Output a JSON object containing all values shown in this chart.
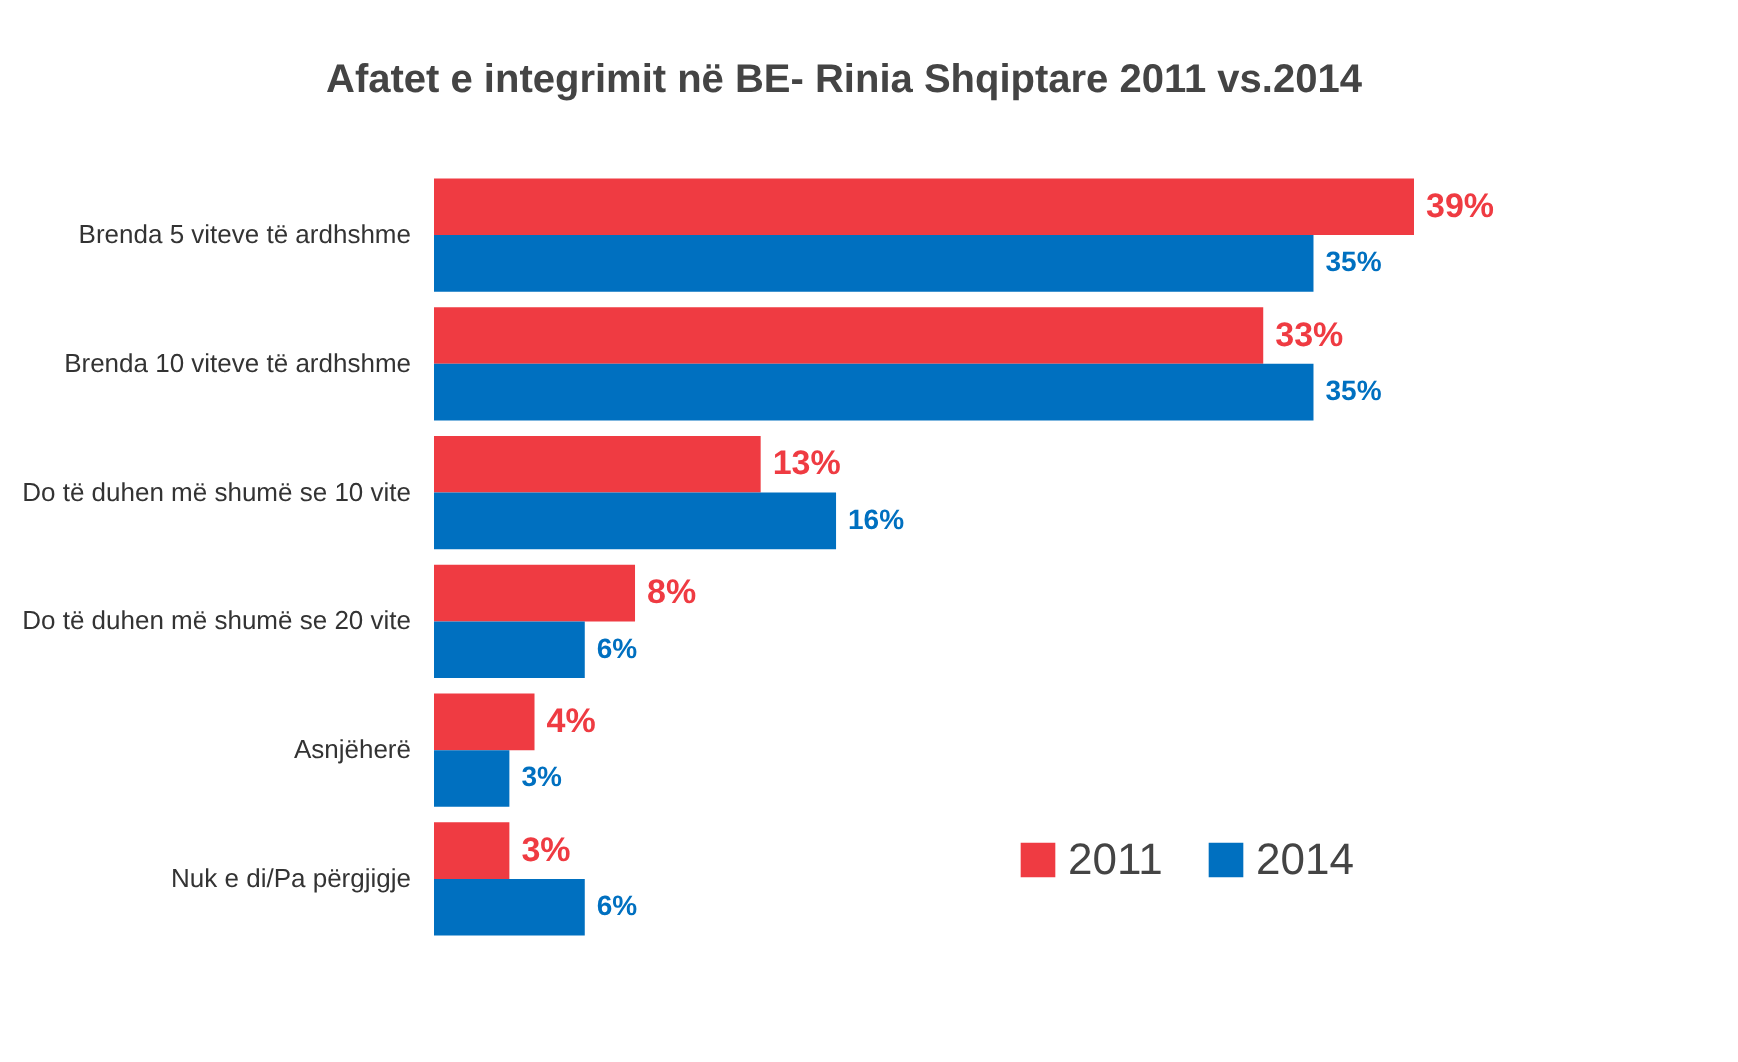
{
  "chart_data": {
    "type": "bar",
    "orientation": "horizontal",
    "title": "Afatet e integrimit në BE- Rinia Shqiptare 2011 vs.2014",
    "categories": [
      "Brenda 5 viteve të ardhshme",
      "Brenda 10 viteve të ardhshme",
      "Do të duhen më shumë se 10 vite",
      "Do të duhen më shumë se 20 vite",
      "Asnjëherë",
      "Nuk e di/Pa përgjigje"
    ],
    "series": [
      {
        "name": "2011",
        "color": "#ef3b42",
        "values": [
          39,
          33,
          13,
          8,
          4,
          3
        ],
        "value_labels": [
          "39%",
          "33%",
          "13%",
          "8%",
          "4%",
          "3%"
        ]
      },
      {
        "name": "2014",
        "color": "#0070c0",
        "values": [
          35,
          35,
          16,
          6,
          3,
          6
        ],
        "value_labels": [
          "35%",
          "35%",
          "16%",
          "6%",
          "3%",
          "6%"
        ]
      }
    ],
    "legend": "bottom right",
    "grid": false
  }
}
